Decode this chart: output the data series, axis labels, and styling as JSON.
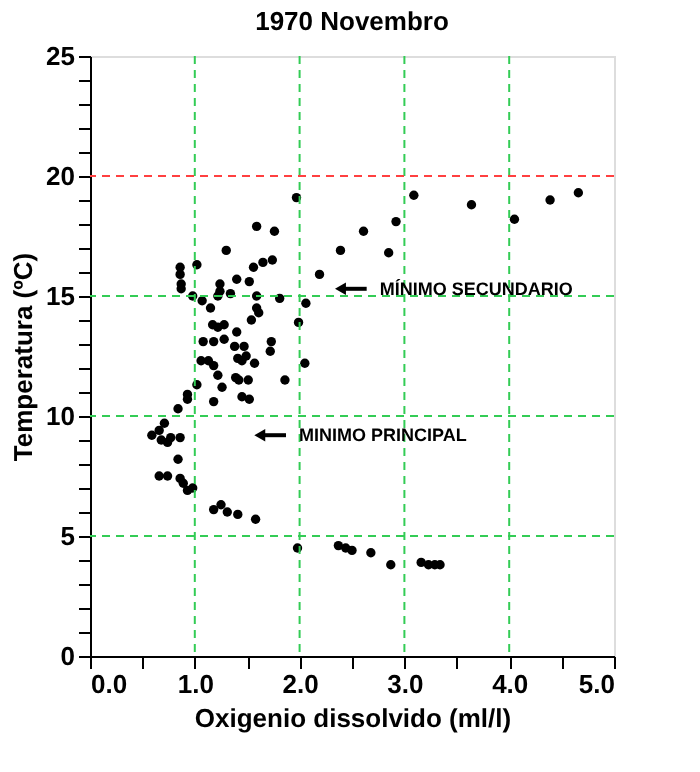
{
  "chart_data": {
    "type": "scatter",
    "title": "1970 Novembro",
    "xlabel": "Oxigenio dissolvido (ml/l)",
    "ylabel": "Temperatura (ºC)",
    "x": [
      1.97,
      3.09,
      3.64,
      4.05,
      4.39,
      4.66,
      2.92,
      2.61,
      2.39,
      2.85,
      2.19,
      2.06,
      1.99,
      2.05,
      1.86,
      1.59,
      1.76,
      1.3,
      1.02,
      0.86,
      0.86,
      0.87,
      0.87,
      0.98,
      1.07,
      1.15,
      1.24,
      1.24,
      1.22,
      1.34,
      1.4,
      1.52,
      1.56,
      1.65,
      1.74,
      1.59,
      1.81,
      1.59,
      1.61,
      1.54,
      1.17,
      1.22,
      1.28,
      1.4,
      1.08,
      1.18,
      1.28,
      1.38,
      1.47,
      1.49,
      1.45,
      1.41,
      1.57,
      1.73,
      1.72,
      1.06,
      1.13,
      1.18,
      1.22,
      1.39,
      1.42,
      1.51,
      1.02,
      1.26,
      0.93,
      0.93,
      1.45,
      1.52,
      1.18,
      0.84,
      0.59,
      0.66,
      0.71,
      0.68,
      0.74,
      0.77,
      0.86,
      0.84,
      0.66,
      0.74,
      0.86,
      0.89,
      0.93,
      0.98,
      1.18,
      1.25,
      1.31,
      1.41,
      1.58,
      1.98,
      2.37,
      2.44,
      2.5,
      2.68,
      2.87,
      3.16,
      3.23,
      3.29,
      3.34
    ],
    "values": [
      19.1,
      19.2,
      18.8,
      18.2,
      19.0,
      19.3,
      18.1,
      17.7,
      16.9,
      16.8,
      15.9,
      14.7,
      13.9,
      12.2,
      11.5,
      17.9,
      17.7,
      16.9,
      16.3,
      16.2,
      15.9,
      15.5,
      15.3,
      15.0,
      14.8,
      14.5,
      15.5,
      15.2,
      15.0,
      15.1,
      15.7,
      15.6,
      16.2,
      16.4,
      16.5,
      15.0,
      14.9,
      14.5,
      14.3,
      14.0,
      13.8,
      13.7,
      13.8,
      13.5,
      13.1,
      13.1,
      13.2,
      12.9,
      12.9,
      12.5,
      12.3,
      12.4,
      12.2,
      13.1,
      12.7,
      12.3,
      12.3,
      12.1,
      11.7,
      11.6,
      11.5,
      11.5,
      11.3,
      11.2,
      10.9,
      10.7,
      10.8,
      10.7,
      10.6,
      10.3,
      9.2,
      9.4,
      9.7,
      9.0,
      8.9,
      9.1,
      9.1,
      8.2,
      7.5,
      7.5,
      7.4,
      7.2,
      6.9,
      7.0,
      6.1,
      6.3,
      6.0,
      5.9,
      5.7,
      4.5,
      4.6,
      4.5,
      4.4,
      4.3,
      3.8,
      3.9,
      3.8,
      3.8,
      3.8
    ],
    "color": "#000000",
    "marker": "circle",
    "xlim": [
      0,
      5
    ],
    "ylim": [
      0,
      25
    ],
    "xticks": [
      {
        "value": 0,
        "label": "0.0"
      },
      {
        "value": 0.5,
        "label": null
      },
      {
        "value": 1,
        "label": "1.0"
      },
      {
        "value": 1.5,
        "label": null
      },
      {
        "value": 2,
        "label": "2.0"
      },
      {
        "value": 2.5,
        "label": null
      },
      {
        "value": 3,
        "label": "3.0"
      },
      {
        "value": 3.5,
        "label": null
      },
      {
        "value": 4,
        "label": "4.0"
      },
      {
        "value": 4.5,
        "label": null
      },
      {
        "value": 5,
        "label": "5.0"
      }
    ],
    "yticks": [
      0,
      {
        "value": 1,
        "label": null
      },
      {
        "value": 2,
        "label": null
      },
      {
        "value": 3,
        "label": null
      },
      {
        "value": 4,
        "label": null
      },
      5,
      {
        "value": 6,
        "label": null
      },
      {
        "value": 7,
        "label": null
      },
      {
        "value": 8,
        "label": null
      },
      {
        "value": 9,
        "label": null
      },
      10,
      {
        "value": 11,
        "label": null
      },
      {
        "value": 12,
        "label": null
      },
      {
        "value": 13,
        "label": null
      },
      {
        "value": 14,
        "label": null
      },
      15,
      {
        "value": 16,
        "label": null
      },
      {
        "value": 17,
        "label": null
      },
      {
        "value": 18,
        "label": null
      },
      {
        "value": 19,
        "label": null
      },
      20,
      {
        "value": 21,
        "label": null
      },
      {
        "value": 22,
        "label": null
      },
      {
        "value": 23,
        "label": null
      },
      {
        "value": 24,
        "label": null
      },
      25
    ],
    "grid": true,
    "ref_lines": [
      {
        "axis": "y",
        "value": 20,
        "color": "#ff4040",
        "line_style": "dashed"
      }
    ],
    "annotations": [
      {
        "text": "MÍNIMO SECUNDARIO",
        "x": 2.39,
        "y": 15.3
      },
      {
        "text": "MINIMO PRINCIPAL",
        "x": 1.62,
        "y": 9.2
      }
    ]
  }
}
